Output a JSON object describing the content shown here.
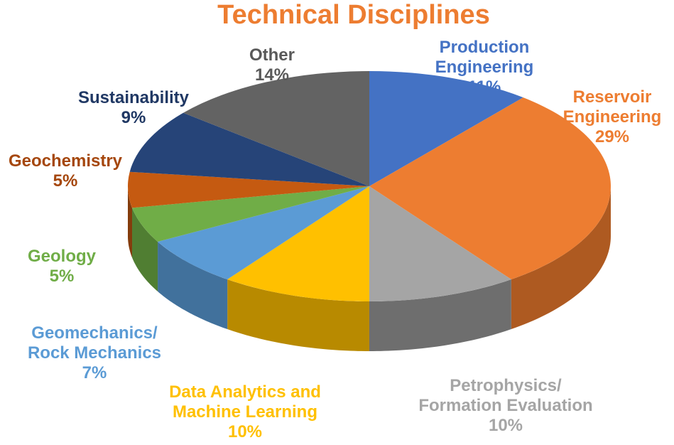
{
  "chart_data": {
    "type": "pie",
    "title": "Technical Disciplines",
    "slices": [
      {
        "label_lines": [
          "Production",
          "Engineering"
        ],
        "percent_label": "11%",
        "value": 11,
        "color": "#4472C4",
        "side_color": "#2F528F"
      },
      {
        "label_lines": [
          "Reservoir",
          "Engineering"
        ],
        "percent_label": "29%",
        "value": 29,
        "color": "#ED7D31",
        "side_color": "#AE5A21"
      },
      {
        "label_lines": [
          "Petrophysics/",
          "Formation Evaluation"
        ],
        "percent_label": "10%",
        "value": 10,
        "color": "#A5A5A5",
        "side_color": "#6E6E6E",
        "label_color": "#A5A5A5"
      },
      {
        "label_lines": [
          "Data Analytics and",
          "Machine Learning"
        ],
        "percent_label": "10%",
        "value": 10,
        "color": "#FFC000",
        "side_color": "#B88A00",
        "label_color": "#FFC000"
      },
      {
        "label_lines": [
          "Geomechanics/",
          "Rock Mechanics"
        ],
        "percent_label": "7%",
        "value": 7,
        "color": "#5B9BD5",
        "side_color": "#41719C",
        "label_color": "#5B9BD5"
      },
      {
        "label_lines": [
          "Geology"
        ],
        "percent_label": "5%",
        "value": 5,
        "color": "#70AD47",
        "side_color": "#507E32",
        "label_color": "#70AD47"
      },
      {
        "label_lines": [
          "Geochemistry"
        ],
        "percent_label": "5%",
        "value": 5,
        "color": "#C55A11",
        "side_color": "#843C0C",
        "label_color": "#A5470D"
      },
      {
        "label_lines": [
          "Sustainability"
        ],
        "percent_label": "9%",
        "value": 9,
        "color": "#264478",
        "side_color": "#1A2F54",
        "label_color": "#203864"
      },
      {
        "label_lines": [
          "Other"
        ],
        "percent_label": "14%",
        "value": 14,
        "color": "#636363",
        "side_color": "#404040",
        "label_color": "#595959"
      }
    ]
  }
}
